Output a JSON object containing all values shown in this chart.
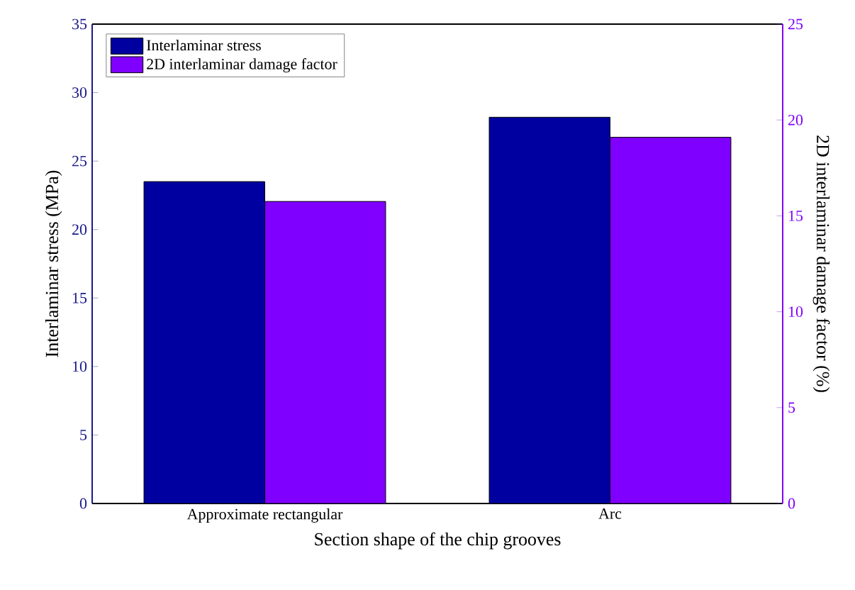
{
  "chart_data": {
    "type": "bar",
    "xlabel": "Section shape of the chip grooves",
    "ylabel": "Interlaminar stress (MPa)",
    "y2label": "2D interlaminar damage factor (%)",
    "categories": [
      "Approximate rectangular",
      "Arc"
    ],
    "series": [
      {
        "name": "Interlaminar stress",
        "color": "#0000a0",
        "values": [
          23.5,
          28.2
        ]
      },
      {
        "name": "2D interlaminar damage factor",
        "color": "#8000ff",
        "values": [
          15.75,
          19.1
        ],
        "axis": "y2"
      }
    ],
    "ylim": [
      0,
      35
    ],
    "yticks": [
      0,
      5,
      10,
      15,
      20,
      25,
      30,
      35
    ],
    "y2lim": [
      0,
      25
    ],
    "y2ticks": [
      0,
      5,
      10,
      15,
      20,
      25
    ],
    "legend": "top left",
    "grid": false
  }
}
